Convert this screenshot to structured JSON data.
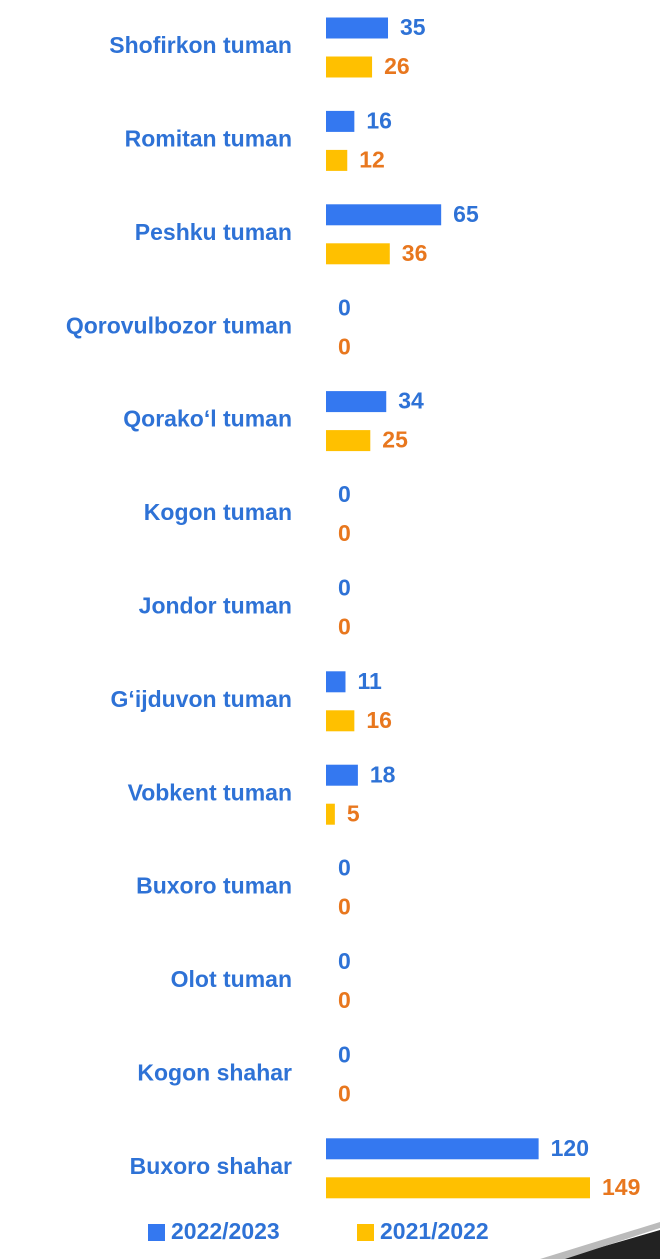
{
  "chart_data": {
    "type": "bar",
    "orientation": "horizontal",
    "categories": [
      "Shofirkon tuman",
      "Romitan tuman",
      "Peshku tuman",
      "Qorovulbozor tuman",
      "Qorako‘l tuman",
      "Kogon tuman",
      "Jondor tuman",
      "G‘ijduvon tuman",
      "Vobkent tuman",
      "Buxoro tuman",
      "Olot tuman",
      "Kogon shahar",
      "Buxoro shahar"
    ],
    "series": [
      {
        "name": "2022/2023",
        "color": "#3478f0",
        "label_color": "#2e72d6",
        "values": [
          35,
          16,
          65,
          0,
          34,
          0,
          0,
          11,
          18,
          0,
          0,
          0,
          120
        ]
      },
      {
        "name": "2021/2022",
        "color": "#ffc000",
        "label_color": "#e8771e",
        "values": [
          26,
          12,
          36,
          0,
          25,
          0,
          0,
          16,
          5,
          0,
          0,
          0,
          149
        ]
      }
    ],
    "legend": "bottom"
  }
}
